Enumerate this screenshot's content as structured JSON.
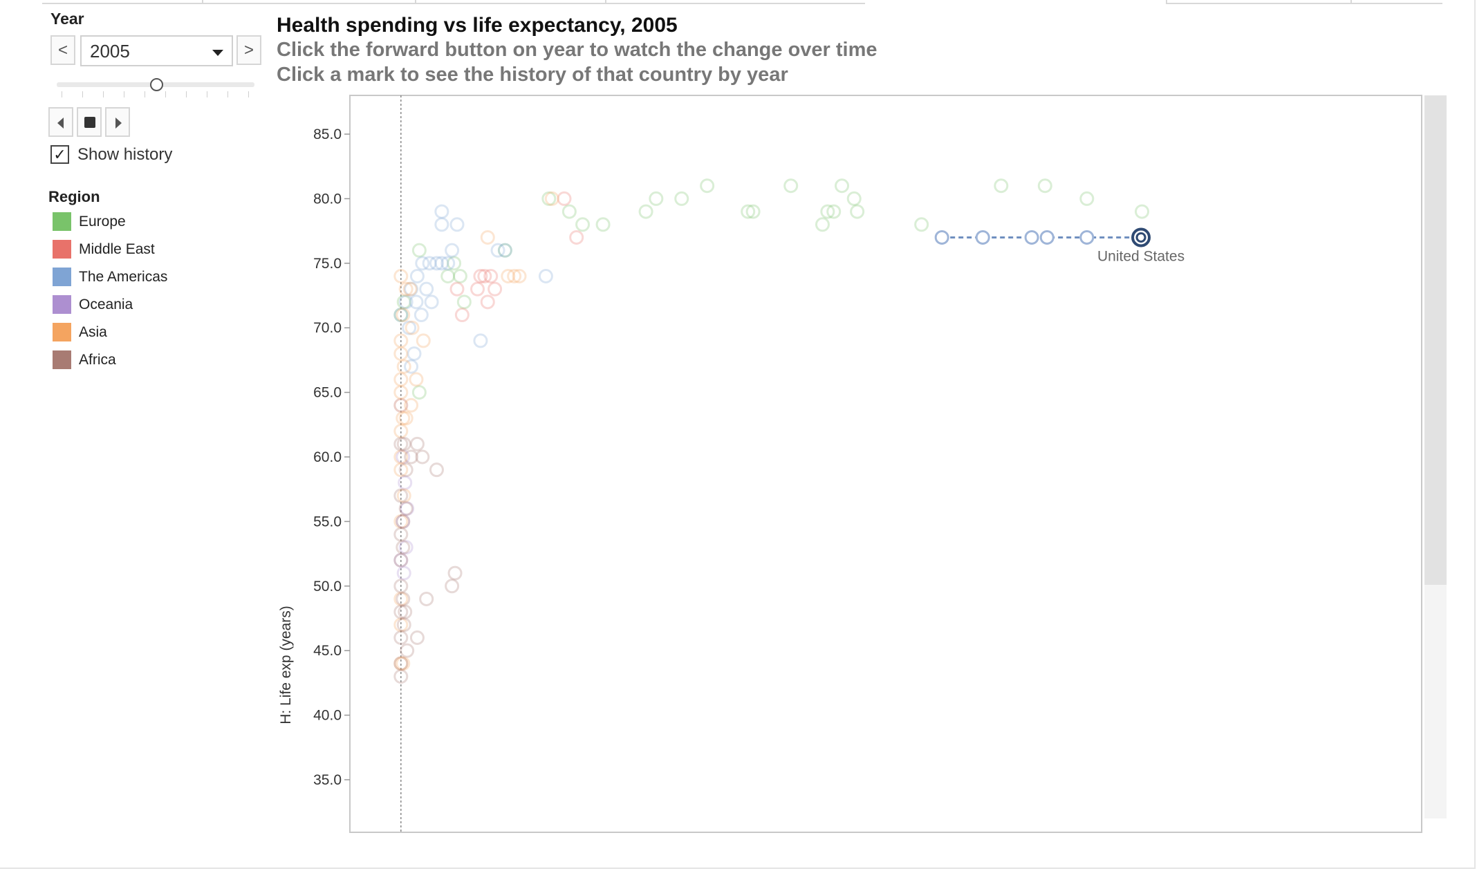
{
  "controls": {
    "year_label": "Year",
    "year_value": "2005",
    "prev_glyph": "<",
    "next_glyph": ">",
    "show_history_label": "Show history",
    "show_history_checked": true,
    "check_glyph": "✓",
    "slider_position": 0.5,
    "play_controls": [
      "step-back-icon",
      "stop-icon",
      "step-forward-icon"
    ]
  },
  "legend": {
    "title": "Region",
    "items": [
      {
        "label": "Europe",
        "color": "#79c36a"
      },
      {
        "label": "Middle East",
        "color": "#e8726a"
      },
      {
        "label": "The Americas",
        "color": "#7fa4d4"
      },
      {
        "label": "Oceania",
        "color": "#ad8fd0"
      },
      {
        "label": "Asia",
        "color": "#f4a460"
      },
      {
        "label": "Africa",
        "color": "#a87b73"
      }
    ]
  },
  "header": {
    "title": "Health spending vs life expectancy, 2005",
    "subtitle_1": "Click the forward button on year to watch the change over time",
    "subtitle_2": "Click a mark to see the history of that country by year"
  },
  "chart_data": {
    "type": "scatter",
    "ylabel": "H: Life exp (years)",
    "ylim": [
      32.0,
      88.0
    ],
    "y_ticks": [
      "85.0",
      "80.0",
      "75.0",
      "70.0",
      "65.0",
      "60.0",
      "55.0",
      "50.0",
      "45.0",
      "40.0",
      "35.0"
    ],
    "xlim": [
      -0.05,
      1.0
    ],
    "x_axis_labels_visible": false,
    "reference_line_x": 0,
    "highlight": {
      "label": "United States",
      "color": "#2f4a73",
      "point": [
        0.725,
        77.0
      ],
      "history": [
        [
          0.53,
          77.0
        ],
        [
          0.57,
          77.0
        ],
        [
          0.618,
          77.0
        ],
        [
          0.633,
          77.0
        ],
        [
          0.672,
          77.0
        ],
        [
          0.725,
          77.0
        ]
      ]
    },
    "series": [
      {
        "name": "Europe",
        "color": "#79c36a",
        "points": [
          [
            0.018,
            76
          ],
          [
            0.018,
            65
          ],
          [
            0.046,
            74
          ],
          [
            0.052,
            75
          ],
          [
            0.058,
            74
          ],
          [
            0.062,
            72
          ],
          [
            0.102,
            76
          ],
          [
            0.145,
            80
          ],
          [
            0.165,
            79
          ],
          [
            0.178,
            78
          ],
          [
            0.198,
            78
          ],
          [
            0.24,
            79
          ],
          [
            0.25,
            80
          ],
          [
            0.275,
            80
          ],
          [
            0.3,
            81
          ],
          [
            0.34,
            79
          ],
          [
            0.345,
            79
          ],
          [
            0.382,
            81
          ],
          [
            0.413,
            78
          ],
          [
            0.418,
            79
          ],
          [
            0.424,
            79
          ],
          [
            0.432,
            81
          ],
          [
            0.444,
            80
          ],
          [
            0.447,
            79
          ],
          [
            0.51,
            78
          ],
          [
            0.588,
            81
          ],
          [
            0.631,
            81
          ],
          [
            0.672,
            80
          ],
          [
            0.726,
            79
          ],
          [
            0.0,
            71
          ],
          [
            0.003,
            72
          ]
        ]
      },
      {
        "name": "Middle East",
        "color": "#e8726a",
        "points": [
          [
            0.16,
            80
          ],
          [
            0.172,
            77
          ],
          [
            0.075,
            73
          ],
          [
            0.078,
            74
          ],
          [
            0.082,
            74
          ],
          [
            0.085,
            72
          ],
          [
            0.088,
            74
          ],
          [
            0.092,
            73
          ],
          [
            0.06,
            71
          ],
          [
            0.055,
            73
          ]
        ]
      },
      {
        "name": "The Americas",
        "color": "#7fa4d4",
        "points": [
          [
            0.04,
            79
          ],
          [
            0.04,
            78
          ],
          [
            0.055,
            78
          ],
          [
            0.095,
            76
          ],
          [
            0.102,
            76
          ],
          [
            0.142,
            74
          ],
          [
            0.078,
            69
          ],
          [
            0.05,
            76
          ],
          [
            0.046,
            75
          ],
          [
            0.04,
            75
          ],
          [
            0.035,
            75
          ],
          [
            0.028,
            75
          ],
          [
            0.021,
            75
          ],
          [
            0.016,
            74
          ],
          [
            0.01,
            73
          ],
          [
            0.005,
            72
          ],
          [
            0.0,
            71
          ],
          [
            0.008,
            70
          ],
          [
            0.01,
            67
          ],
          [
            0.013,
            68
          ],
          [
            0.03,
            72
          ],
          [
            0.025,
            73
          ],
          [
            0.02,
            71
          ],
          [
            0.015,
            72
          ]
        ]
      },
      {
        "name": "Oceania",
        "color": "#ad8fd0",
        "points": [
          [
            0.0,
            64
          ],
          [
            0.002,
            60
          ],
          [
            0.004,
            58
          ],
          [
            0.006,
            56
          ],
          [
            0.002,
            55
          ],
          [
            0.005,
            53
          ],
          [
            0.0,
            52
          ],
          [
            0.003,
            51
          ]
        ]
      },
      {
        "name": "Asia",
        "color": "#f4a460",
        "points": [
          [
            0.148,
            80
          ],
          [
            0.085,
            77
          ],
          [
            0.116,
            74
          ],
          [
            0.111,
            74
          ],
          [
            0.105,
            74
          ],
          [
            0.0,
            74
          ],
          [
            0.005,
            73
          ],
          [
            0.009,
            73
          ],
          [
            0.002,
            71
          ],
          [
            0.0,
            69
          ],
          [
            0.0,
            68
          ],
          [
            0.003,
            67
          ],
          [
            0.0,
            66
          ],
          [
            0.0,
            65
          ],
          [
            0.0,
            64
          ],
          [
            0.01,
            64
          ],
          [
            0.015,
            66
          ],
          [
            0.002,
            63
          ],
          [
            0.005,
            63
          ],
          [
            0.0,
            62
          ],
          [
            0.0,
            60
          ],
          [
            0.0,
            59
          ],
          [
            0.003,
            57
          ],
          [
            0.0,
            55
          ],
          [
            0.0,
            49
          ],
          [
            0.0,
            47
          ],
          [
            0.002,
            44
          ],
          [
            0.0,
            44
          ],
          [
            0.011,
            70
          ],
          [
            0.022,
            69
          ]
        ]
      },
      {
        "name": "Africa",
        "color": "#a87b73",
        "points": [
          [
            0.0,
            61
          ],
          [
            0.003,
            61
          ],
          [
            0.016,
            61
          ],
          [
            0.01,
            60
          ],
          [
            0.005,
            59
          ],
          [
            0.021,
            60
          ],
          [
            0.035,
            59
          ],
          [
            0.0,
            57
          ],
          [
            0.002,
            55
          ],
          [
            0.005,
            56
          ],
          [
            0.0,
            54
          ],
          [
            0.002,
            53
          ],
          [
            0.0,
            52
          ],
          [
            0.0,
            50
          ],
          [
            0.002,
            49
          ],
          [
            0.004,
            48
          ],
          [
            0.0,
            46
          ],
          [
            0.016,
            46
          ],
          [
            0.025,
            49
          ],
          [
            0.05,
            50
          ],
          [
            0.053,
            51
          ],
          [
            0.0,
            44
          ],
          [
            0.0,
            48
          ],
          [
            0.003,
            47
          ],
          [
            0.006,
            45
          ],
          [
            0.0,
            43
          ]
        ]
      }
    ]
  }
}
